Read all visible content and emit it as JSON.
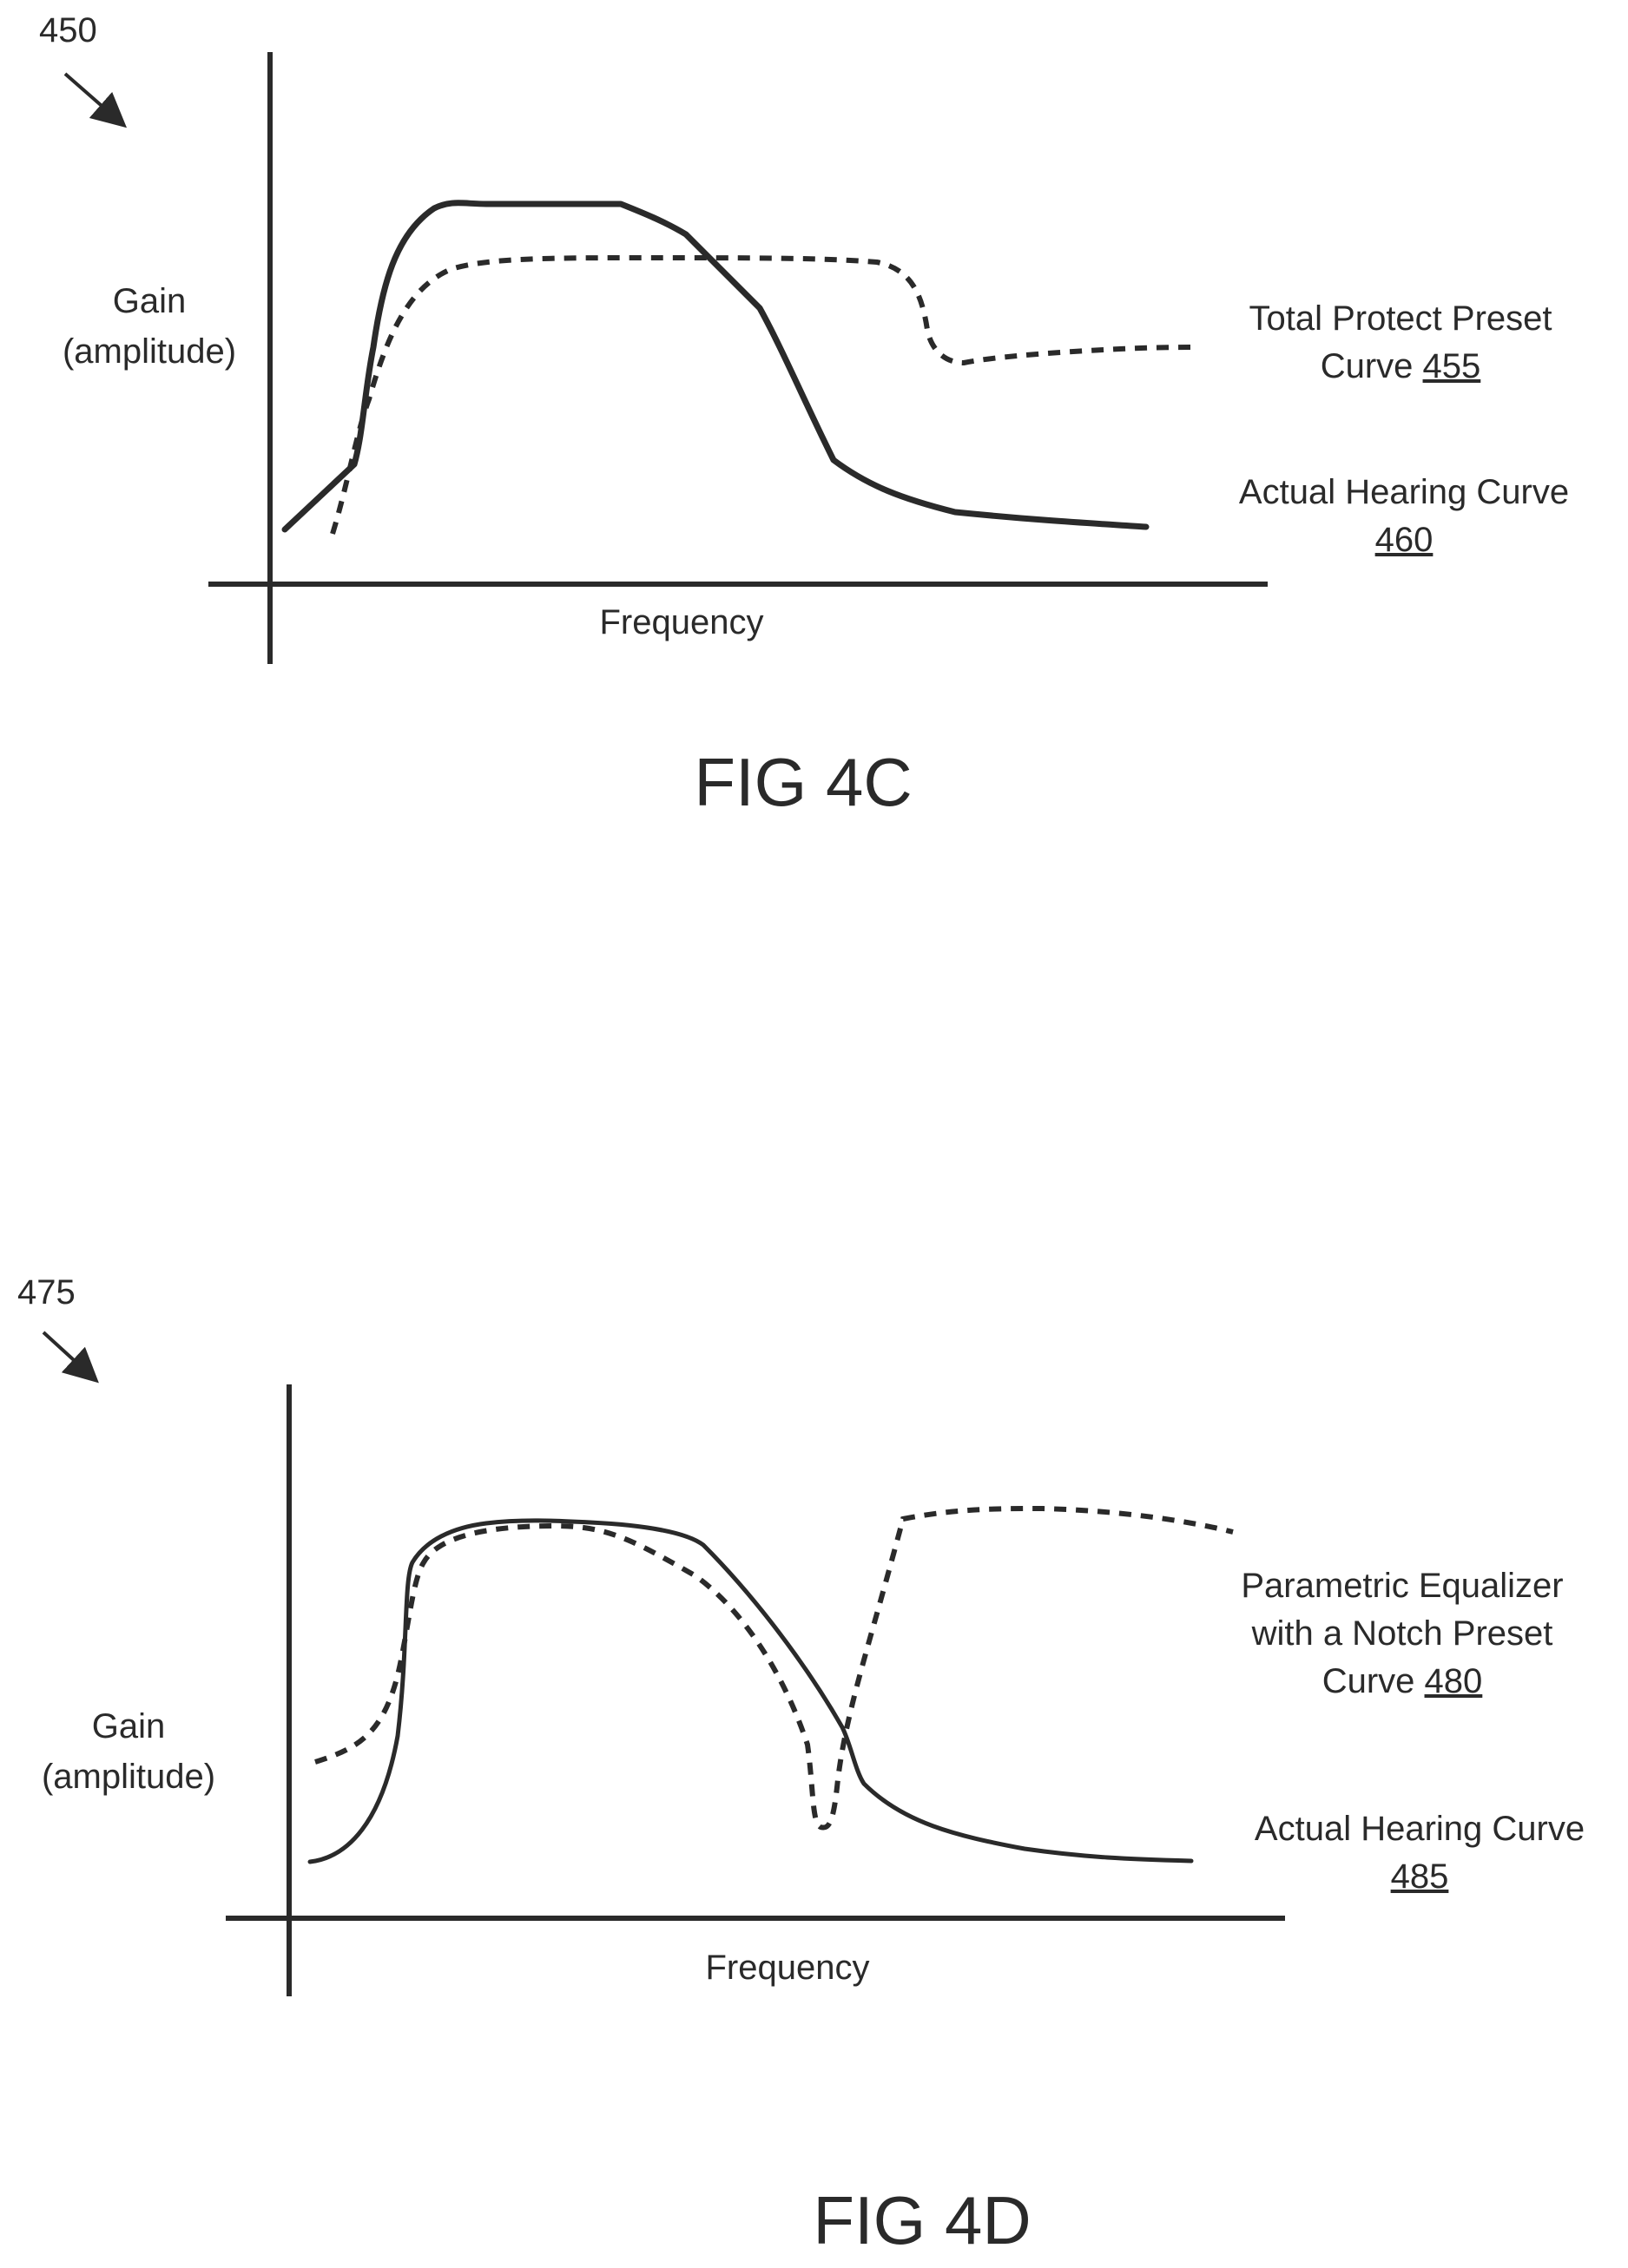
{
  "figures": [
    {
      "id": "fig-4c",
      "ref_number": "450",
      "ylabel_line1": "Gain",
      "ylabel_line2": "(amplitude)",
      "xlabel": "Frequency",
      "caption": "FIG 4C",
      "curves": [
        {
          "key": "preset",
          "style": "dashed",
          "label_lines": [
            "Total Protect Preset",
            "Curve"
          ],
          "ref": "455"
        },
        {
          "key": "actual",
          "style": "solid",
          "label_lines": [
            "Actual Hearing Curve"
          ],
          "ref": "460"
        }
      ]
    },
    {
      "id": "fig-4d",
      "ref_number": "475",
      "ylabel_line1": "Gain",
      "ylabel_line2": "(amplitude)",
      "xlabel": "Frequency",
      "caption": "FIG 4D",
      "curves": [
        {
          "key": "preset",
          "style": "dashed",
          "label_lines": [
            "Parametric Equalizer",
            "with a Notch Preset",
            "Curve"
          ],
          "ref": "480"
        },
        {
          "key": "actual",
          "style": "solid",
          "label_lines": [
            "Actual Hearing Curve"
          ],
          "ref": "485"
        }
      ]
    }
  ],
  "colors": {
    "ink": "#2a2a2a",
    "background": "#ffffff"
  }
}
